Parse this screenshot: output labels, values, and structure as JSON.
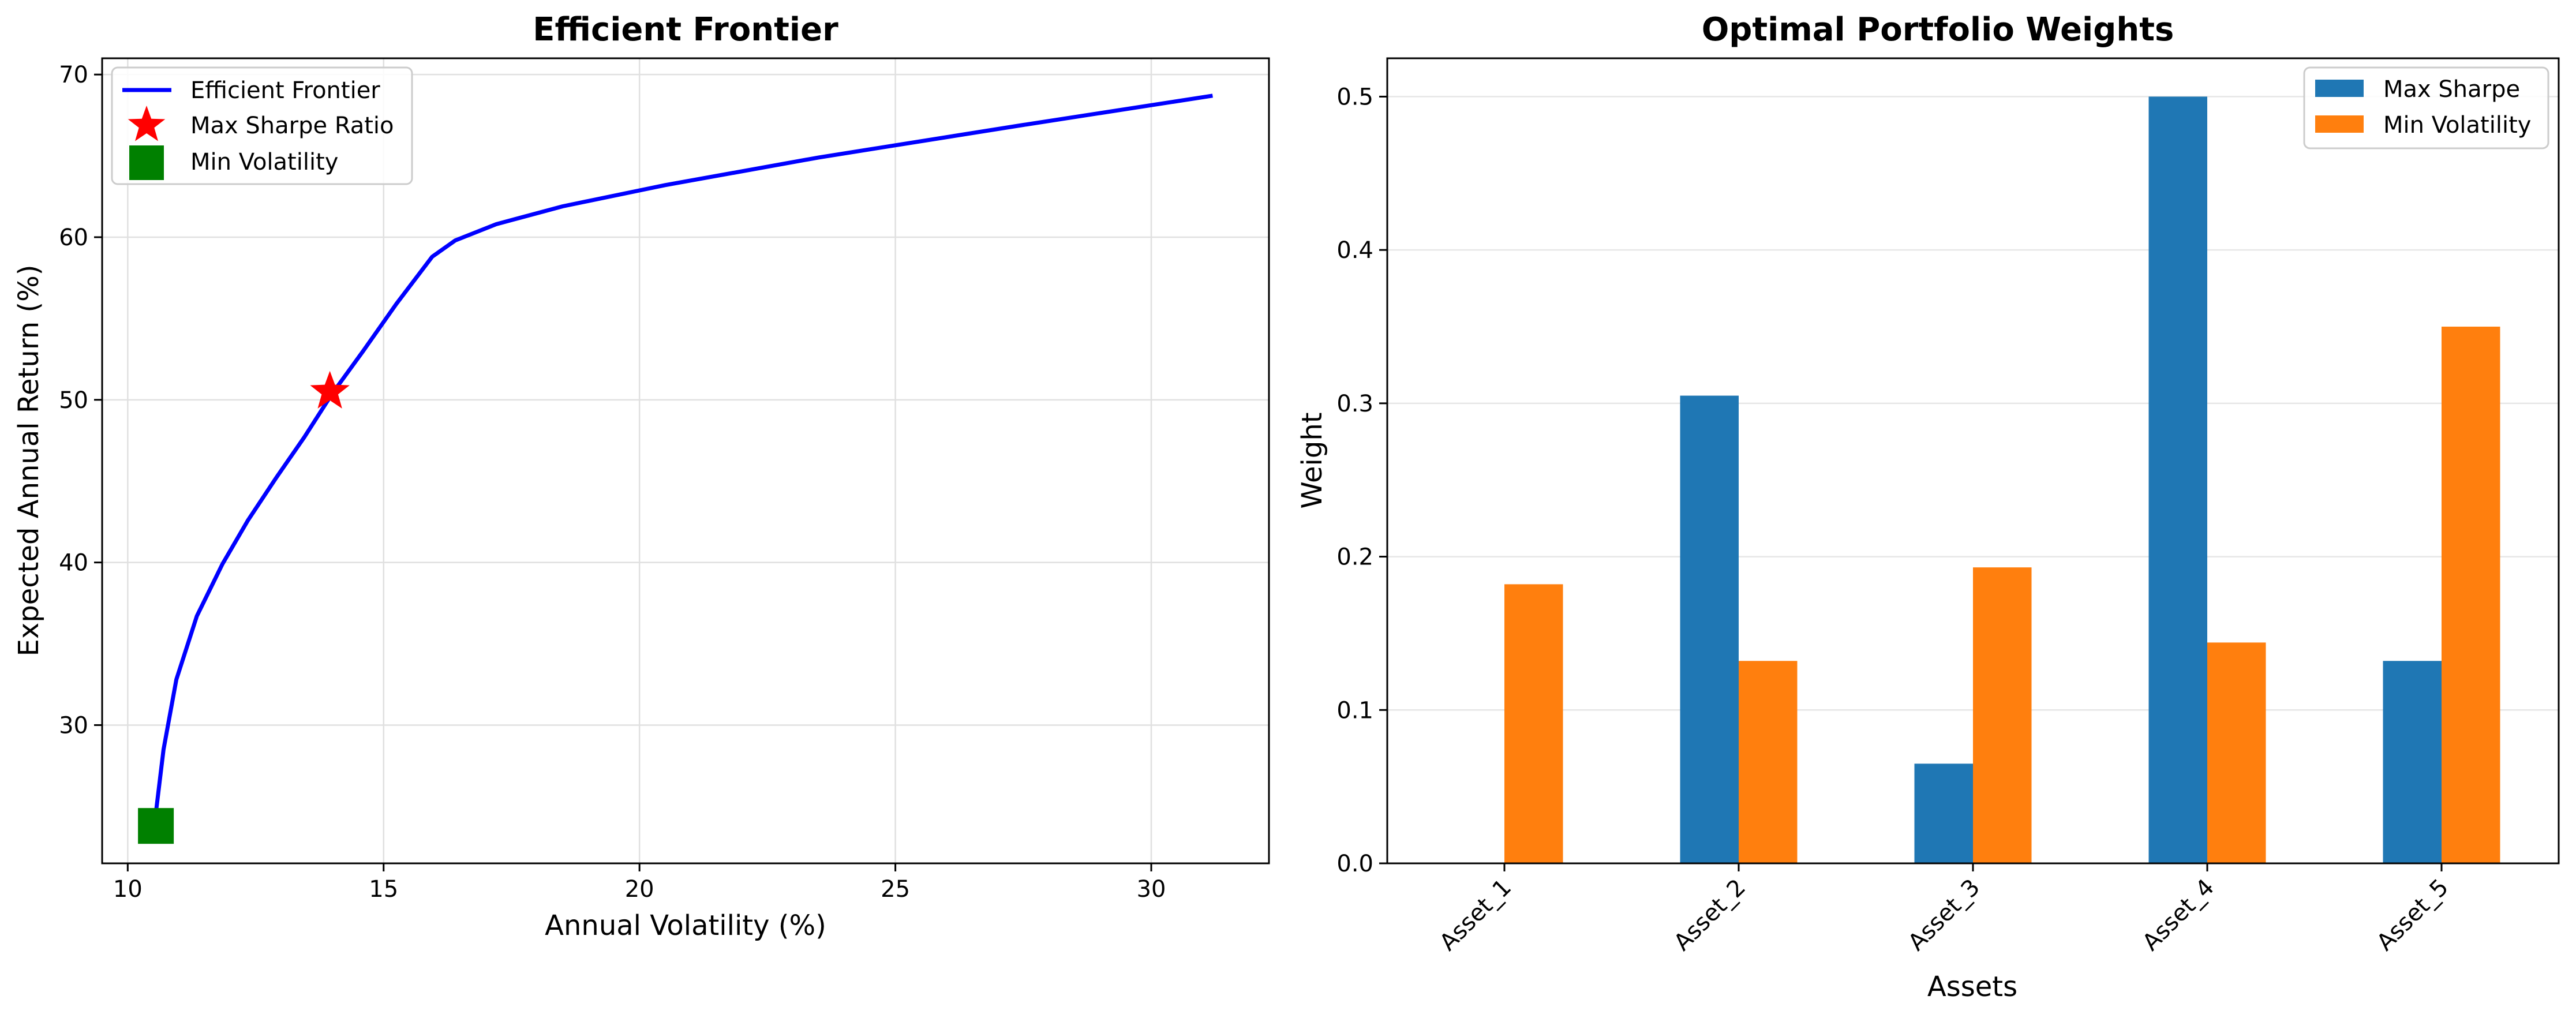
{
  "chart_data": [
    {
      "type": "line",
      "title": "Efficient Frontier",
      "xlabel": "Annual Volatility (%)",
      "ylabel": "Expected Annual Return (%)",
      "xlim": [
        9.5,
        32.3
      ],
      "ylim": [
        21.5,
        71.0
      ],
      "xticks": [
        10,
        15,
        20,
        25,
        30
      ],
      "yticks": [
        30,
        40,
        50,
        60,
        70
      ],
      "grid": true,
      "legend_position": "top-left",
      "series": [
        {
          "name": "Efficient Frontier",
          "color": "#0000ff",
          "marker": "line",
          "x": [
            10.55,
            10.7,
            10.95,
            11.35,
            11.85,
            12.35,
            12.9,
            13.45,
            14.0,
            14.6,
            15.25,
            15.95,
            16.4,
            17.2,
            18.5,
            20.5,
            23.5,
            27.5,
            31.2
          ],
          "y": [
            24.6,
            28.5,
            32.8,
            36.7,
            39.9,
            42.6,
            45.2,
            47.7,
            50.4,
            53.0,
            55.9,
            58.8,
            59.8,
            60.8,
            61.9,
            63.2,
            64.9,
            66.9,
            68.7
          ]
        },
        {
          "name": "Max Sharpe Ratio",
          "color": "#ff0000",
          "marker": "star",
          "x": [
            13.95
          ],
          "y": [
            50.5
          ]
        },
        {
          "name": "Min Volatility",
          "color": "#008000",
          "marker": "square",
          "x": [
            10.55
          ],
          "y": [
            23.8
          ]
        }
      ]
    },
    {
      "type": "bar",
      "title": "Optimal Portfolio Weights",
      "xlabel": "Assets",
      "ylabel": "Weight",
      "categories": [
        "Asset_1",
        "Asset_2",
        "Asset_3",
        "Asset_4",
        "Asset_5"
      ],
      "ylim": [
        0,
        0.525
      ],
      "yticks": [
        "0.0",
        "0.1",
        "0.2",
        "0.3",
        "0.4",
        "0.5"
      ],
      "grid": true,
      "legend_position": "top-right",
      "series": [
        {
          "name": "Max Sharpe",
          "color": "#1f77b4",
          "values": [
            0.0,
            0.305,
            0.065,
            0.5,
            0.132
          ]
        },
        {
          "name": "Min Volatility",
          "color": "#ff7f0e",
          "values": [
            0.182,
            0.132,
            0.193,
            0.144,
            0.35
          ]
        }
      ]
    }
  ]
}
